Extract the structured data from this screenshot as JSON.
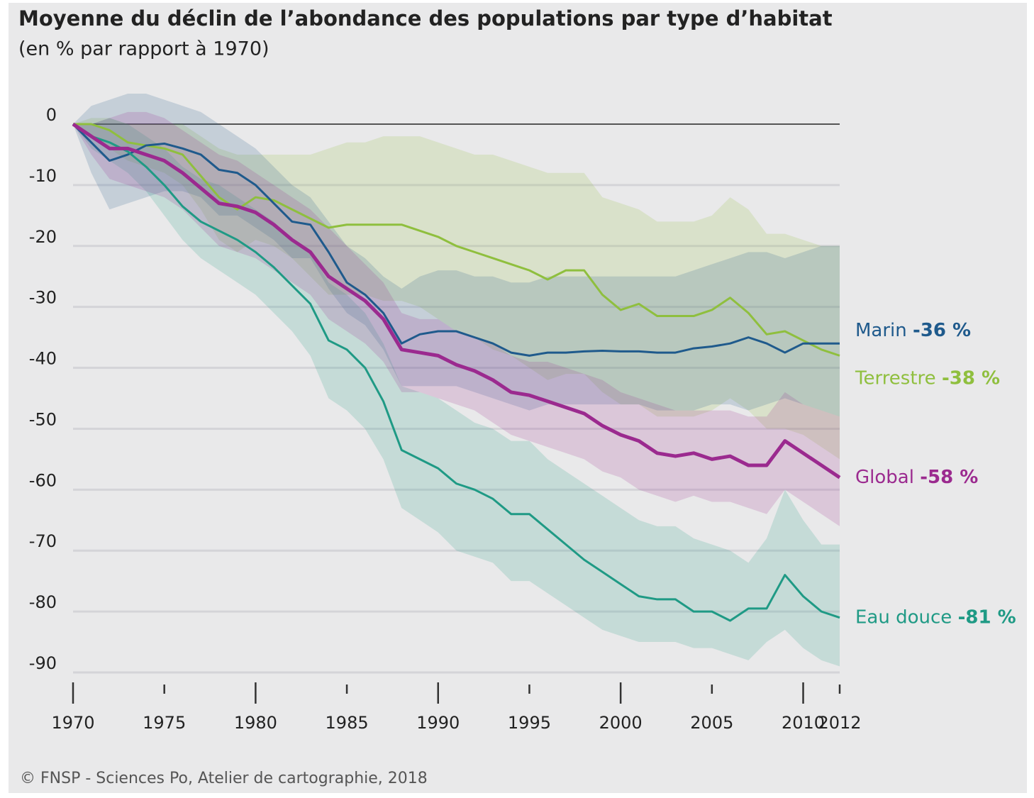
{
  "chart_data": {
    "type": "line",
    "title": "Moyenne du déclin de l’abondance des populations par type d’habitat",
    "subtitle": "(en % par rapport à 1970)",
    "source": "© FNSP - Sciences Po, Atelier de cartographie, 2018",
    "x": [
      1970,
      1971,
      1972,
      1973,
      1974,
      1975,
      1976,
      1977,
      1978,
      1979,
      1980,
      1981,
      1982,
      1983,
      1984,
      1985,
      1986,
      1987,
      1988,
      1989,
      1990,
      1991,
      1992,
      1993,
      1994,
      1995,
      1996,
      1997,
      1998,
      1999,
      2000,
      2001,
      2002,
      2003,
      2004,
      2005,
      2006,
      2007,
      2008,
      2009,
      2010,
      2011,
      2012
    ],
    "xlim": [
      1970,
      2012
    ],
    "xticks": [
      1970,
      1975,
      1980,
      1985,
      1990,
      1995,
      2000,
      2005,
      2010,
      2012
    ],
    "ylim": [
      -90,
      0
    ],
    "yticks": [
      0,
      -10,
      -20,
      -30,
      -40,
      -50,
      -60,
      -70,
      -80,
      -90
    ],
    "grid": true,
    "series": [
      {
        "name": "Terrestre",
        "color": "#8fbf3e",
        "end_label": "-38 %",
        "values": [
          0,
          0,
          -1,
          -3,
          -3.5,
          -4,
          -5,
          -8.5,
          -12,
          -14,
          -12,
          -12.5,
          -14,
          -15.5,
          -17,
          -16.5,
          -16.5,
          -16.5,
          -16.5,
          -17.5,
          -18.5,
          -20,
          -21,
          -22,
          -23,
          -24,
          -25.5,
          -24,
          -24,
          -28,
          -30.5,
          -29.5,
          -31.5,
          -31.5,
          -31.5,
          -30.5,
          -28.5,
          -31,
          -34.5,
          -34,
          -35.5,
          -37,
          -38
        ],
        "band_upper": [
          0,
          1,
          1,
          0,
          0,
          0,
          0,
          -2,
          -4,
          -5,
          -5,
          -5,
          -5,
          -5,
          -4,
          -3,
          -3,
          -2,
          -2,
          -2,
          -3,
          -4,
          -5,
          -5,
          -6,
          -7,
          -8,
          -8,
          -8,
          -12,
          -13,
          -14,
          -16,
          -16,
          -16,
          -15,
          -12,
          -14,
          -18,
          -18,
          -19,
          -20,
          -20
        ],
        "band_lower": [
          0,
          -2,
          -4,
          -6,
          -7,
          -8,
          -10,
          -14,
          -19,
          -21,
          -19,
          -20,
          -22,
          -25,
          -28,
          -28,
          -28,
          -29,
          -29,
          -30,
          -32,
          -34,
          -35,
          -37,
          -38,
          -40,
          -42,
          -41,
          -41,
          -44,
          -46,
          -46,
          -48,
          -48,
          -48,
          -47,
          -45,
          -47,
          -50,
          -50,
          -51,
          -53,
          -55
        ]
      },
      {
        "name": "Marin",
        "color": "#1f5a8c",
        "end_label": "-36 %",
        "values": [
          0,
          -3,
          -6,
          -5,
          -3.5,
          -3.2,
          -4,
          -5,
          -7.5,
          -8,
          -10,
          -13,
          -16,
          -16.5,
          -21,
          -26,
          -28,
          -31,
          -36,
          -34.5,
          -34,
          -34,
          -35,
          -36,
          -37.5,
          -38,
          -37.5,
          -37.5,
          -37.3,
          -37.2,
          -37.3,
          -37.3,
          -37.5,
          -37.5,
          -36.8,
          -36.5,
          -36,
          -35,
          -36,
          -37.5,
          -36,
          -36,
          -36
        ],
        "band_upper": [
          0,
          3,
          4,
          5,
          5,
          4,
          3,
          2,
          0,
          -2,
          -4,
          -7,
          -10,
          -12,
          -16,
          -20,
          -22,
          -25,
          -27,
          -25,
          -24,
          -24,
          -25,
          -25,
          -26,
          -26,
          -25,
          -25,
          -25,
          -25,
          -25,
          -25,
          -25,
          -25,
          -24,
          -23,
          -22,
          -21,
          -21,
          -22,
          -21,
          -20,
          -20
        ],
        "band_lower": [
          0,
          -8,
          -14,
          -13,
          -12,
          -11,
          -11,
          -12,
          -15,
          -15,
          -17,
          -19,
          -22,
          -22,
          -27,
          -31,
          -33,
          -37,
          -43,
          -43,
          -43,
          -43,
          -44,
          -45,
          -46,
          -47,
          -46,
          -46,
          -46,
          -46,
          -46,
          -46,
          -47,
          -47,
          -47,
          -46,
          -46,
          -47,
          -46,
          -45,
          -46,
          -47,
          -48
        ]
      },
      {
        "name": "Eau douce",
        "color": "#1f9a85",
        "end_label": "-81 %",
        "values": [
          0,
          -2,
          -3,
          -4.5,
          -7,
          -10,
          -13.5,
          -16,
          -17.5,
          -19,
          -21,
          -23.5,
          -26.5,
          -29.5,
          -35.5,
          -37,
          -40,
          -45.5,
          -53.5,
          -55,
          -56.5,
          -59,
          -60,
          -61.5,
          -64,
          -64,
          -66.5,
          -69,
          -71.5,
          -73.5,
          -75.5,
          -77.5,
          -78,
          -78,
          -80,
          -80,
          -81.5,
          -79.5,
          -79.5,
          -74,
          -77.5,
          -80,
          -81
        ],
        "band_upper": [
          0,
          0,
          1,
          0,
          -2,
          -4,
          -7,
          -9,
          -10,
          -12,
          -14,
          -16,
          -19,
          -21,
          -26,
          -28,
          -31,
          -36,
          -43,
          -44,
          -45,
          -47,
          -49,
          -50,
          -52,
          -52,
          -55,
          -57,
          -59,
          -61,
          -63,
          -65,
          -66,
          -66,
          -68,
          -69,
          -70,
          -72,
          -68,
          -60,
          -65,
          -69,
          -69
        ],
        "band_lower": [
          0,
          -4,
          -6,
          -8,
          -11,
          -15,
          -19,
          -22,
          -24,
          -26,
          -28,
          -31,
          -34,
          -38,
          -45,
          -47,
          -50,
          -55,
          -63,
          -65,
          -67,
          -70,
          -71,
          -72,
          -75,
          -75,
          -77,
          -79,
          -81,
          -83,
          -84,
          -85,
          -85,
          -85,
          -86,
          -86,
          -87,
          -88,
          -85,
          -83,
          -86,
          -88,
          -89
        ]
      },
      {
        "name": "Global",
        "color": "#9b2a8f",
        "end_label": "-58 %",
        "values": [
          0,
          -2,
          -4,
          -4,
          -5,
          -6,
          -8,
          -10.5,
          -13,
          -13.5,
          -14.5,
          -16.5,
          -19,
          -21,
          -25,
          -27,
          -29,
          -32,
          -37,
          -37.5,
          -38,
          -39.5,
          -40.5,
          -42,
          -44,
          -44.5,
          -45.5,
          -46.5,
          -47.5,
          -49.5,
          -51,
          -52,
          -54,
          -54.5,
          -54,
          -55,
          -54.5,
          -56,
          -56,
          -52,
          -54,
          -56,
          -58
        ],
        "band_upper": [
          0,
          0,
          1,
          2,
          2,
          1,
          -1,
          -3,
          -5,
          -6,
          -8,
          -10,
          -12,
          -14,
          -17,
          -20,
          -23,
          -26,
          -31,
          -32,
          -32,
          -34,
          -35,
          -36,
          -38,
          -39,
          -39,
          -40,
          -41,
          -42,
          -44,
          -45,
          -46,
          -47,
          -47,
          -47,
          -47,
          -48,
          -48,
          -44,
          -46,
          -47,
          -48
        ],
        "band_lower": [
          0,
          -5,
          -9,
          -10,
          -11,
          -12,
          -14,
          -17,
          -20,
          -21,
          -22,
          -24,
          -26,
          -28,
          -32,
          -34,
          -36,
          -39,
          -44,
          -44,
          -45,
          -46,
          -47,
          -49,
          -51,
          -52,
          -53,
          -54,
          -55,
          -57,
          -58,
          -60,
          -61,
          -62,
          -61,
          -62,
          -62,
          -63,
          -64,
          -60,
          -62,
          -64,
          -66
        ]
      }
    ]
  }
}
